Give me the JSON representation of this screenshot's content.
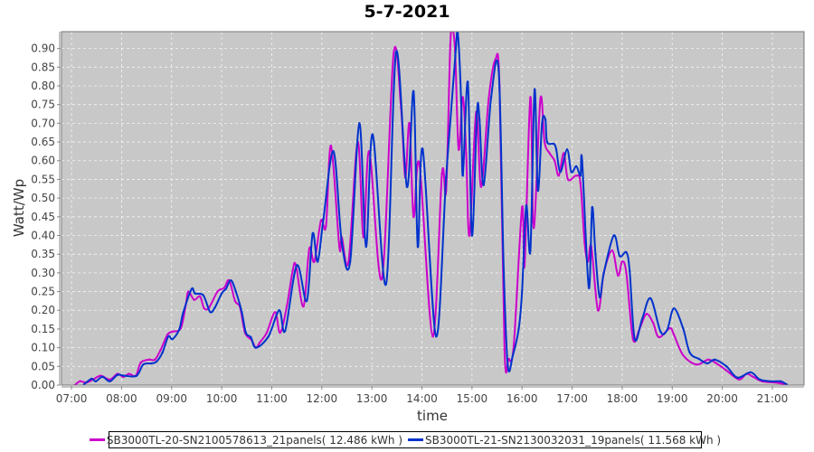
{
  "chart_data": {
    "type": "line",
    "title": "5-7-2021",
    "xlabel": "time",
    "ylabel": "Watt/Wp",
    "xlim": [
      "06:48",
      "21:38"
    ],
    "ylim": [
      0,
      0.945
    ],
    "x_ticks": [
      "07:00",
      "08:00",
      "09:00",
      "10:00",
      "11:00",
      "12:00",
      "13:00",
      "14:00",
      "15:00",
      "16:00",
      "17:00",
      "18:00",
      "19:00",
      "20:00",
      "21:00"
    ],
    "y_ticks": [
      "0.00",
      "0.05",
      "0.10",
      "0.15",
      "0.20",
      "0.25",
      "0.30",
      "0.35",
      "0.40",
      "0.45",
      "0.50",
      "0.55",
      "0.60",
      "0.65",
      "0.70",
      "0.75",
      "0.80",
      "0.85",
      "0.90"
    ],
    "grid": true,
    "legend_position": "bottom",
    "background": "#c8c8c8",
    "series": [
      {
        "name": "SB3000TL-20-SN2100578613_21panels( 12.486 kWh )",
        "color": "#cc00cc",
        "points": [
          [
            "07:04",
            0.0
          ],
          [
            "07:10",
            0.01
          ],
          [
            "07:18",
            0.007
          ],
          [
            "07:26",
            0.015
          ],
          [
            "07:35",
            0.025
          ],
          [
            "07:46",
            0.015
          ],
          [
            "07:55",
            0.03
          ],
          [
            "08:02",
            0.022
          ],
          [
            "08:09",
            0.03
          ],
          [
            "08:17",
            0.025
          ],
          [
            "08:23",
            0.06
          ],
          [
            "08:33",
            0.068
          ],
          [
            "08:40",
            0.068
          ],
          [
            "08:47",
            0.095
          ],
          [
            "08:55",
            0.135
          ],
          [
            "09:01",
            0.143
          ],
          [
            "09:11",
            0.152
          ],
          [
            "09:17",
            0.215
          ],
          [
            "09:20",
            0.25
          ],
          [
            "09:27",
            0.228
          ],
          [
            "09:34",
            0.237
          ],
          [
            "09:39",
            0.205
          ],
          [
            "09:45",
            0.208
          ],
          [
            "09:55",
            0.25
          ],
          [
            "10:03",
            0.26
          ],
          [
            "10:09",
            0.28
          ],
          [
            "10:16",
            0.225
          ],
          [
            "10:22",
            0.208
          ],
          [
            "10:28",
            0.14
          ],
          [
            "10:36",
            0.12
          ],
          [
            "10:41",
            0.1
          ],
          [
            "10:46",
            0.115
          ],
          [
            "10:54",
            0.14
          ],
          [
            "11:04",
            0.195
          ],
          [
            "11:10",
            0.14
          ],
          [
            "11:18",
            0.21
          ],
          [
            "11:25",
            0.305
          ],
          [
            "11:29",
            0.32
          ],
          [
            "11:38",
            0.21
          ],
          [
            "11:45",
            0.365
          ],
          [
            "11:51",
            0.33
          ],
          [
            "11:59",
            0.44
          ],
          [
            "12:05",
            0.425
          ],
          [
            "12:11",
            0.64
          ],
          [
            "12:21",
            0.37
          ],
          [
            "12:24",
            0.395
          ],
          [
            "12:32",
            0.33
          ],
          [
            "12:43",
            0.65
          ],
          [
            "12:50",
            0.395
          ],
          [
            "12:57",
            0.625
          ],
          [
            "13:12",
            0.285
          ],
          [
            "13:26",
            0.885
          ],
          [
            "13:35",
            0.74
          ],
          [
            "13:40",
            0.555
          ],
          [
            "13:45",
            0.7
          ],
          [
            "13:50",
            0.45
          ],
          [
            "13:57",
            0.59
          ],
          [
            "14:13",
            0.13
          ],
          [
            "14:24",
            0.565
          ],
          [
            "14:29",
            0.52
          ],
          [
            "14:34",
            0.91
          ],
          [
            "14:37",
            0.95
          ],
          [
            "14:40",
            0.88
          ],
          [
            "14:44",
            0.63
          ],
          [
            "14:49",
            0.77
          ],
          [
            "14:53",
            0.62
          ],
          [
            "14:57",
            0.4
          ],
          [
            "15:05",
            0.73
          ],
          [
            "15:11",
            0.53
          ],
          [
            "15:20",
            0.765
          ],
          [
            "15:28",
            0.87
          ],
          [
            "15:33",
            0.8
          ],
          [
            "15:39",
            0.095
          ],
          [
            "15:44",
            0.07
          ],
          [
            "15:50",
            0.105
          ],
          [
            "16:00",
            0.475
          ],
          [
            "16:03",
            0.32
          ],
          [
            "16:10",
            0.77
          ],
          [
            "16:14",
            0.42
          ],
          [
            "16:22",
            0.765
          ],
          [
            "16:27",
            0.65
          ],
          [
            "16:33",
            0.62
          ],
          [
            "16:39",
            0.6
          ],
          [
            "16:44",
            0.56
          ],
          [
            "16:50",
            0.62
          ],
          [
            "16:55",
            0.55
          ],
          [
            "17:05",
            0.56
          ],
          [
            "17:10",
            0.54
          ],
          [
            "17:15",
            0.38
          ],
          [
            "17:19",
            0.33
          ],
          [
            "17:23",
            0.37
          ],
          [
            "17:31",
            0.2
          ],
          [
            "17:38",
            0.3
          ],
          [
            "17:48",
            0.36
          ],
          [
            "17:55",
            0.293
          ],
          [
            "18:00",
            0.33
          ],
          [
            "18:05",
            0.3
          ],
          [
            "18:13",
            0.123
          ],
          [
            "18:21",
            0.152
          ],
          [
            "18:29",
            0.19
          ],
          [
            "18:37",
            0.167
          ],
          [
            "18:44",
            0.128
          ],
          [
            "18:57",
            0.152
          ],
          [
            "19:02",
            0.135
          ],
          [
            "19:13",
            0.08
          ],
          [
            "19:29",
            0.055
          ],
          [
            "19:43",
            0.068
          ],
          [
            "19:53",
            0.058
          ],
          [
            "20:05",
            0.039
          ],
          [
            "20:20",
            0.015
          ],
          [
            "20:29",
            0.03
          ],
          [
            "20:37",
            0.022
          ],
          [
            "20:48",
            0.01
          ],
          [
            "21:03",
            0.007
          ],
          [
            "21:17",
            0.002
          ]
        ]
      },
      {
        "name": "SB3000TL-21-SN2130032031_19panels( 11.568 kWh )",
        "color": "#0033cc",
        "points": [
          [
            "07:15",
            0.002
          ],
          [
            "07:24",
            0.017
          ],
          [
            "07:29",
            0.01
          ],
          [
            "07:37",
            0.022
          ],
          [
            "07:46",
            0.01
          ],
          [
            "07:55",
            0.027
          ],
          [
            "08:04",
            0.025
          ],
          [
            "08:18",
            0.025
          ],
          [
            "08:26",
            0.055
          ],
          [
            "08:36",
            0.058
          ],
          [
            "08:42",
            0.063
          ],
          [
            "08:49",
            0.087
          ],
          [
            "08:56",
            0.13
          ],
          [
            "09:01",
            0.123
          ],
          [
            "09:09",
            0.148
          ],
          [
            "09:14",
            0.195
          ],
          [
            "09:24",
            0.257
          ],
          [
            "09:28",
            0.245
          ],
          [
            "09:38",
            0.24
          ],
          [
            "09:46",
            0.196
          ],
          [
            "09:52",
            0.208
          ],
          [
            "10:00",
            0.245
          ],
          [
            "10:05",
            0.257
          ],
          [
            "10:11",
            0.28
          ],
          [
            "10:17",
            0.25
          ],
          [
            "10:24",
            0.196
          ],
          [
            "10:29",
            0.14
          ],
          [
            "10:35",
            0.128
          ],
          [
            "10:41",
            0.1
          ],
          [
            "10:56",
            0.13
          ],
          [
            "11:09",
            0.2
          ],
          [
            "11:16",
            0.145
          ],
          [
            "11:30",
            0.32
          ],
          [
            "11:42",
            0.225
          ],
          [
            "11:49",
            0.405
          ],
          [
            "11:55",
            0.33
          ],
          [
            "12:02",
            0.445
          ],
          [
            "12:14",
            0.625
          ],
          [
            "12:24",
            0.38
          ],
          [
            "12:34",
            0.33
          ],
          [
            "12:45",
            0.7
          ],
          [
            "12:53",
            0.37
          ],
          [
            "13:01",
            0.67
          ],
          [
            "13:17",
            0.27
          ],
          [
            "13:29",
            0.89
          ],
          [
            "13:42",
            0.53
          ],
          [
            "13:50",
            0.785
          ],
          [
            "13:55",
            0.37
          ],
          [
            "14:01",
            0.63
          ],
          [
            "14:17",
            0.13
          ],
          [
            "14:29",
            0.555
          ],
          [
            "14:40",
            0.88
          ],
          [
            "14:43",
            0.94
          ],
          [
            "14:47",
            0.76
          ],
          [
            "14:49",
            0.56
          ],
          [
            "14:55",
            0.81
          ],
          [
            "15:00",
            0.4
          ],
          [
            "15:06",
            0.73
          ],
          [
            "15:09",
            0.71
          ],
          [
            "15:14",
            0.535
          ],
          [
            "15:23",
            0.77
          ],
          [
            "15:32",
            0.84
          ],
          [
            "15:38",
            0.31
          ],
          [
            "15:43",
            0.05
          ],
          [
            "15:49",
            0.08
          ],
          [
            "15:56",
            0.15
          ],
          [
            "16:00",
            0.25
          ],
          [
            "16:05",
            0.48
          ],
          [
            "16:10",
            0.36
          ],
          [
            "16:15",
            0.79
          ],
          [
            "16:19",
            0.52
          ],
          [
            "16:24",
            0.7
          ],
          [
            "16:28",
            0.71
          ],
          [
            "16:30",
            0.65
          ],
          [
            "16:38",
            0.645
          ],
          [
            "16:41",
            0.63
          ],
          [
            "16:46",
            0.57
          ],
          [
            "16:54",
            0.63
          ],
          [
            "16:59",
            0.57
          ],
          [
            "17:05",
            0.585
          ],
          [
            "17:10",
            0.56
          ],
          [
            "17:12",
            0.6
          ],
          [
            "17:20",
            0.26
          ],
          [
            "17:24",
            0.475
          ],
          [
            "17:28",
            0.35
          ],
          [
            "17:33",
            0.235
          ],
          [
            "17:38",
            0.3
          ],
          [
            "17:50",
            0.4
          ],
          [
            "17:57",
            0.345
          ],
          [
            "18:05",
            0.355
          ],
          [
            "18:09",
            0.305
          ],
          [
            "18:15",
            0.123
          ],
          [
            "18:24",
            0.177
          ],
          [
            "18:34",
            0.232
          ],
          [
            "18:46",
            0.143
          ],
          [
            "18:54",
            0.148
          ],
          [
            "19:02",
            0.205
          ],
          [
            "19:13",
            0.152
          ],
          [
            "19:21",
            0.087
          ],
          [
            "19:32",
            0.07
          ],
          [
            "19:42",
            0.058
          ],
          [
            "19:51",
            0.068
          ],
          [
            "20:05",
            0.05
          ],
          [
            "20:18",
            0.02
          ],
          [
            "20:34",
            0.034
          ],
          [
            "20:45",
            0.015
          ],
          [
            "20:59",
            0.01
          ],
          [
            "21:10",
            0.01
          ],
          [
            "21:17",
            0.002
          ]
        ]
      }
    ]
  }
}
